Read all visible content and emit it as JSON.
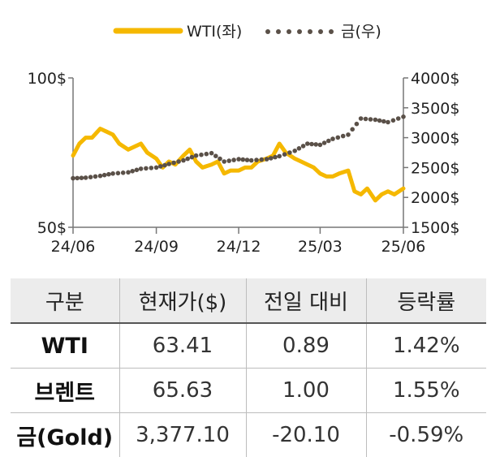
{
  "chart_data": {
    "type": "line",
    "x_ticks": [
      "24/06",
      "24/09",
      "24/12",
      "25/03",
      "25/06"
    ],
    "y_left": {
      "min": 50,
      "max": 100,
      "ticks": [
        "50$",
        "100$"
      ]
    },
    "y_right": {
      "min": 1500,
      "max": 4000,
      "ticks": [
        "1500$",
        "2000$",
        "2500$",
        "3000$",
        "3500$",
        "4000$"
      ]
    },
    "legend_position": "top",
    "series": [
      {
        "name": "WTI(좌)",
        "axis": "left",
        "style": "solid",
        "color": "#f5b800",
        "x": [
          "2024-06-01",
          "2024-06-08",
          "2024-06-15",
          "2024-06-22",
          "2024-07-01",
          "2024-07-08",
          "2024-07-15",
          "2024-07-22",
          "2024-08-01",
          "2024-08-08",
          "2024-08-15",
          "2024-08-22",
          "2024-09-01",
          "2024-09-08",
          "2024-09-15",
          "2024-09-22",
          "2024-10-01",
          "2024-10-08",
          "2024-10-15",
          "2024-10-22",
          "2024-11-01",
          "2024-11-08",
          "2024-11-15",
          "2024-11-22",
          "2024-12-01",
          "2024-12-08",
          "2024-12-15",
          "2024-12-22",
          "2025-01-01",
          "2025-01-08",
          "2025-01-15",
          "2025-01-22",
          "2025-02-01",
          "2025-02-08",
          "2025-02-15",
          "2025-02-22",
          "2025-03-01",
          "2025-03-08",
          "2025-03-15",
          "2025-03-22",
          "2025-04-01",
          "2025-04-08",
          "2025-04-15",
          "2025-04-22",
          "2025-05-01",
          "2025-05-08",
          "2025-05-15",
          "2025-05-22",
          "2025-06-01"
        ],
        "y": [
          74,
          78,
          80,
          80,
          83,
          82,
          81,
          78,
          76,
          77,
          78,
          75,
          73,
          70,
          72,
          71,
          74,
          76,
          72,
          70,
          71,
          72,
          68,
          69,
          69,
          70,
          70,
          72,
          73,
          74,
          78,
          75,
          73,
          72,
          71,
          70,
          68,
          67,
          67,
          68,
          69,
          62,
          61,
          63,
          59,
          61,
          62,
          61,
          63
        ]
      },
      {
        "name": "금(우)",
        "axis": "right",
        "style": "dotted",
        "color": "#5a5048",
        "x": [
          "2024-06-01",
          "2024-06-15",
          "2024-07-01",
          "2024-07-15",
          "2024-08-01",
          "2024-08-15",
          "2024-09-01",
          "2024-09-15",
          "2024-10-01",
          "2024-10-15",
          "2024-11-01",
          "2024-11-15",
          "2024-12-01",
          "2024-12-15",
          "2025-01-01",
          "2025-01-15",
          "2025-02-01",
          "2025-02-15",
          "2025-03-01",
          "2025-03-15",
          "2025-04-01",
          "2025-04-15",
          "2025-05-01",
          "2025-05-15",
          "2025-06-01"
        ],
        "y": [
          2320,
          2330,
          2360,
          2400,
          2420,
          2480,
          2500,
          2560,
          2620,
          2700,
          2740,
          2600,
          2640,
          2620,
          2640,
          2690,
          2780,
          2900,
          2880,
          2980,
          3050,
          3320,
          3300,
          3260,
          3350
        ]
      }
    ]
  },
  "table": {
    "headers": [
      "구분",
      "현재가($)",
      "전일 대비",
      "등락률"
    ],
    "rows": [
      {
        "name": "WTI",
        "price": "63.41",
        "change": "0.89",
        "rate": "1.42%"
      },
      {
        "name": "브렌트",
        "price": "65.63",
        "change": "1.00",
        "rate": "1.55%"
      },
      {
        "name": "금(Gold)",
        "price": "3,377.10",
        "change": "-20.10",
        "rate": "-0.59%"
      }
    ]
  }
}
